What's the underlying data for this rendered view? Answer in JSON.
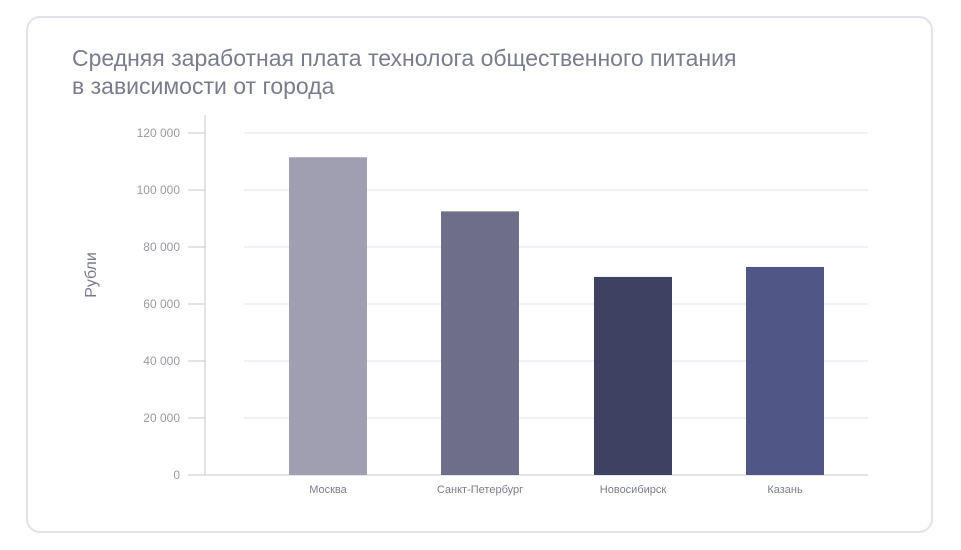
{
  "chart_data": {
    "type": "bar",
    "title_lines": [
      "Средняя заработная плата технолога общественного питания",
      "в зависимости от города"
    ],
    "ylabel": "Рубли",
    "xlabel": "",
    "categories": [
      "Москва",
      "Санкт-Петербург",
      "Новосибирск",
      "Казань"
    ],
    "values": [
      111500,
      92500,
      69500,
      73000
    ],
    "colors": [
      "#a09fb2",
      "#6e6e88",
      "#3f4163",
      "#505685"
    ],
    "ylim": [
      0,
      120000
    ],
    "yticks": [
      0,
      20000,
      40000,
      60000,
      80000,
      100000,
      120000
    ],
    "ytick_labels": [
      "0",
      "20 000",
      "40 000",
      "60 000",
      "80 000",
      "100 000",
      "120 000"
    ],
    "grid": true,
    "grid_color": "#e6e6ee"
  }
}
